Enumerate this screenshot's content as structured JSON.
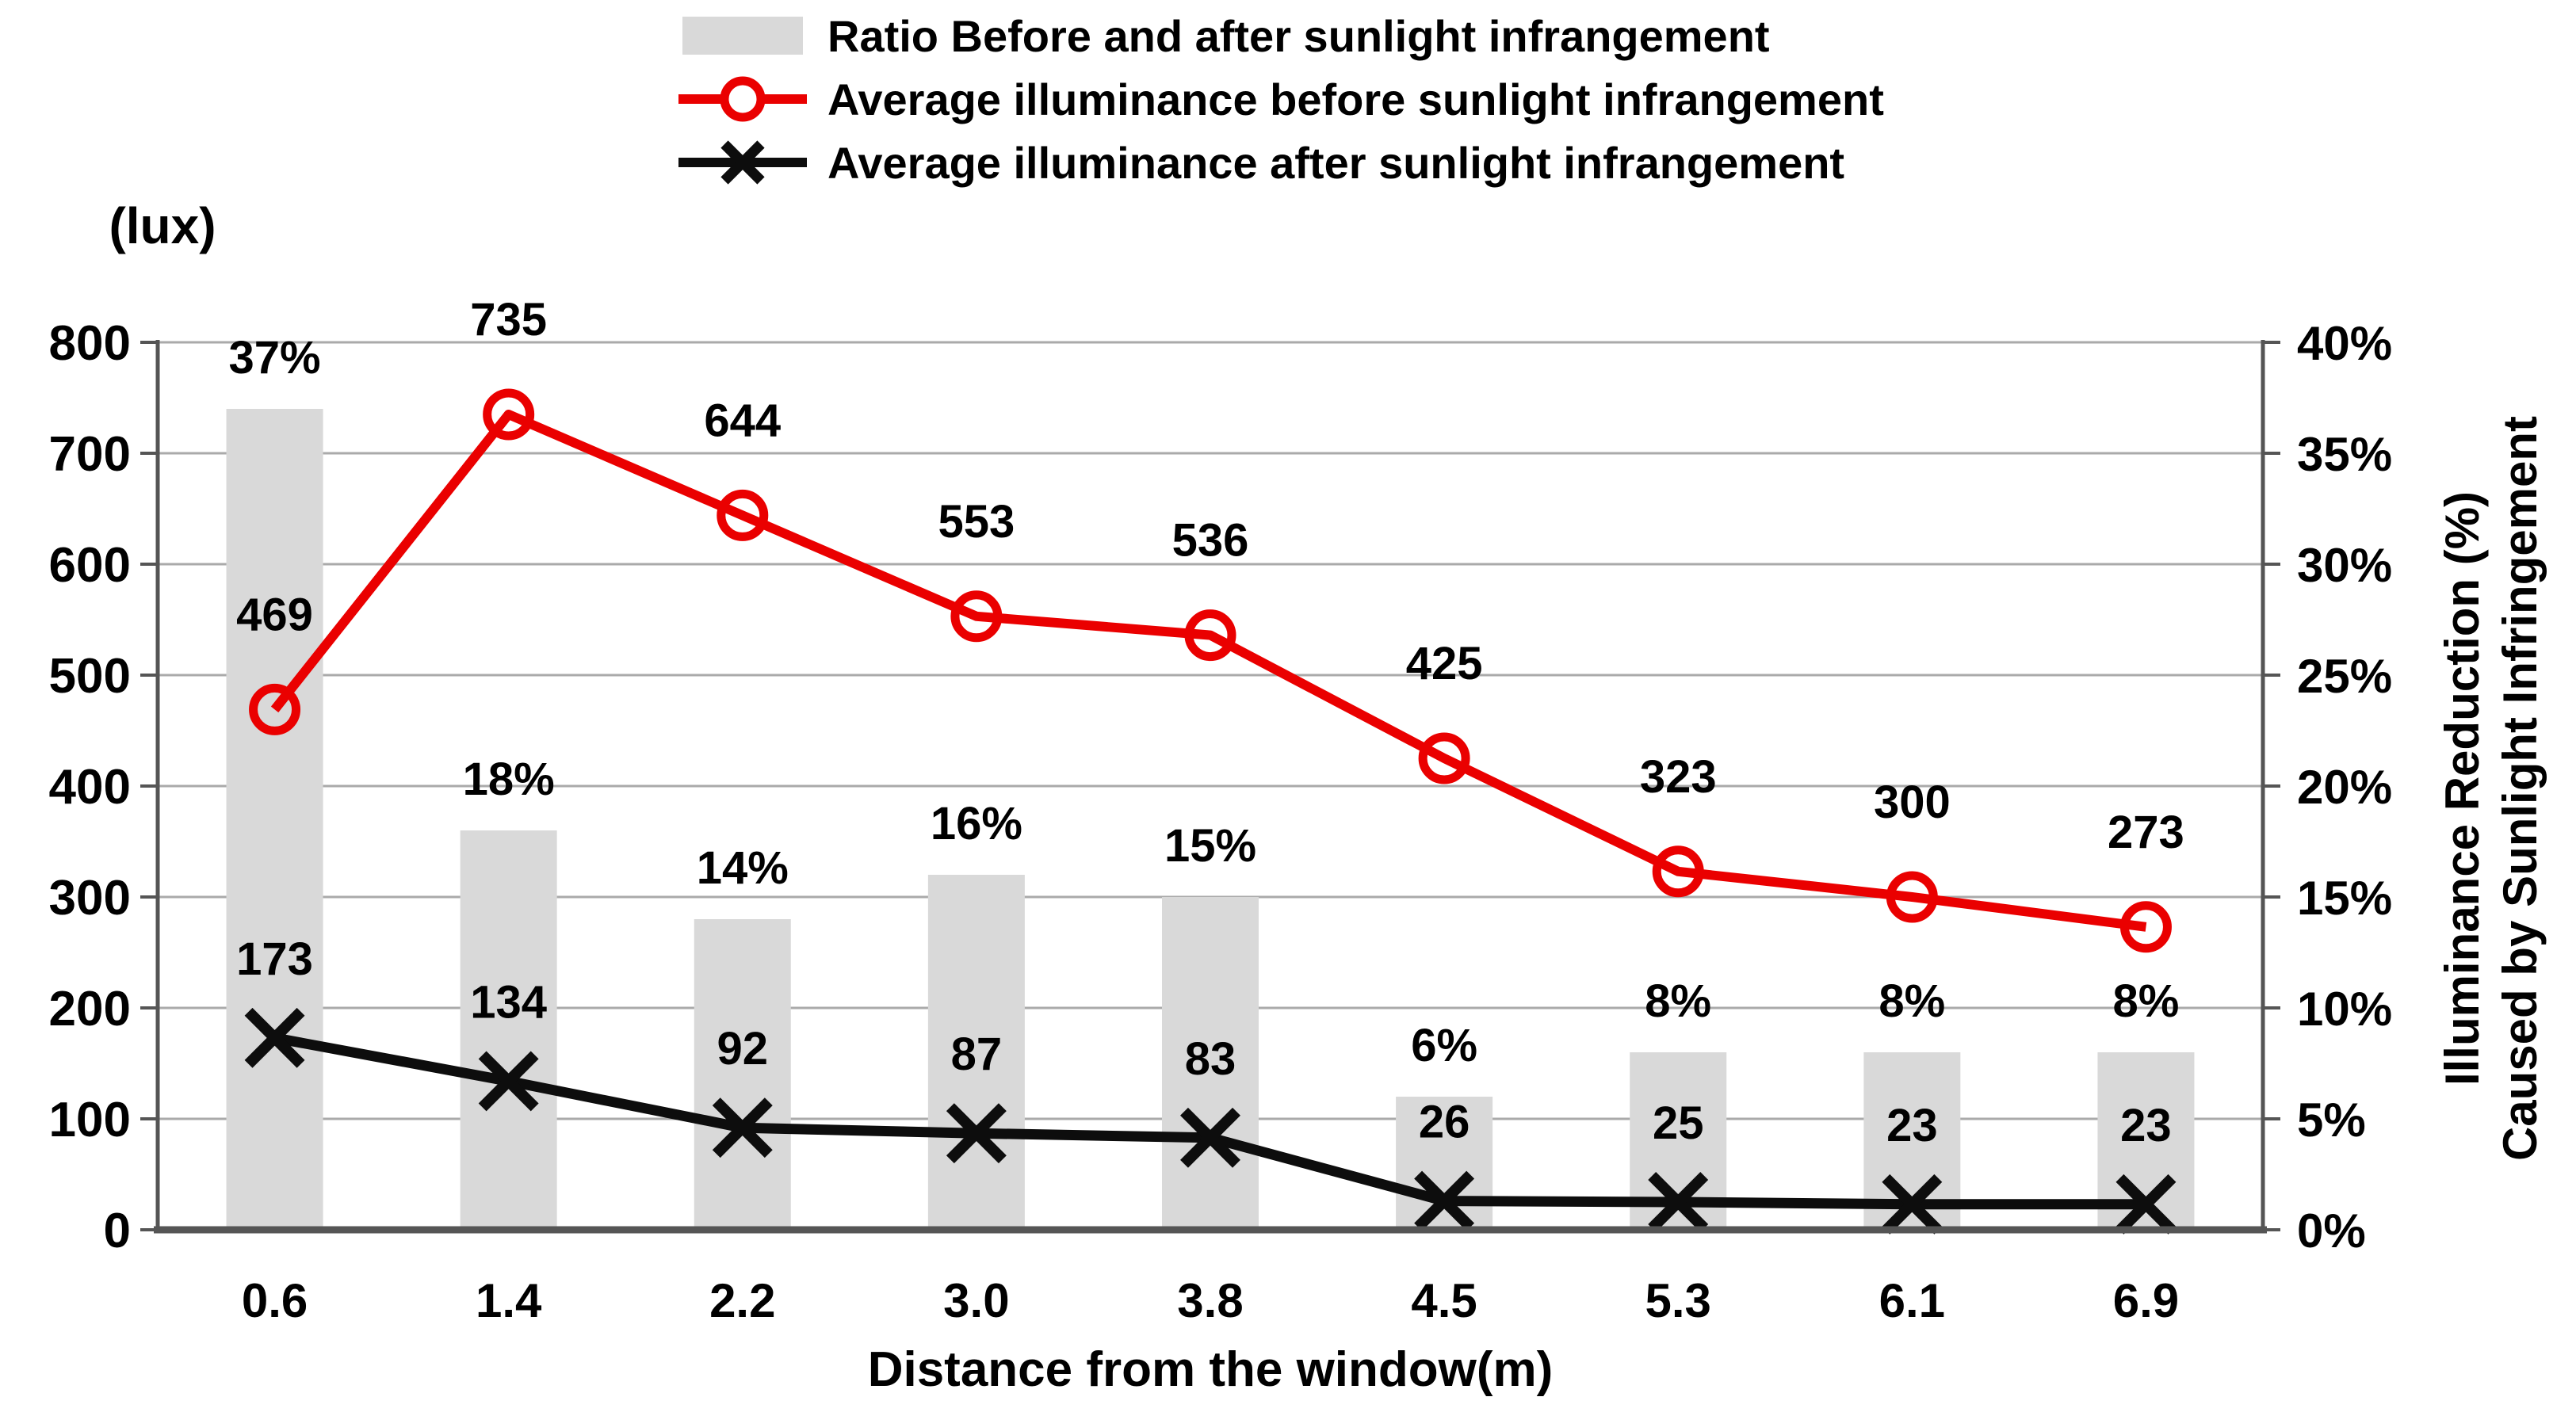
{
  "chart_data": {
    "type": "combo",
    "title": "",
    "categories": [
      "0.6",
      "1.4",
      "2.2",
      "3.0",
      "3.8",
      "4.5",
      "5.3",
      "6.1",
      "6.9"
    ],
    "series": [
      {
        "name": "Ratio Before and after sunlight infrangement",
        "type": "bar",
        "axis": "right",
        "color": "#d9d9d9",
        "values": [
          37,
          18,
          14,
          16,
          15,
          6,
          8,
          8,
          8
        ],
        "labels": [
          "37%",
          "18%",
          "14%",
          "16%",
          "15%",
          "6%",
          "8%",
          "8%",
          "8%"
        ]
      },
      {
        "name": "Average illuminance before sunlight infrangement",
        "type": "line",
        "axis": "left",
        "marker": "circle",
        "color": "#ea0000",
        "values": [
          469,
          735,
          644,
          553,
          536,
          425,
          323,
          300,
          273
        ],
        "labels": [
          "469",
          "735",
          "644",
          "553",
          "536",
          "425",
          "323",
          "300",
          "273"
        ]
      },
      {
        "name": "Average illuminance after sunlight infrangement",
        "type": "line",
        "axis": "left",
        "marker": "x",
        "color": "#0d0d0d",
        "values": [
          173,
          134,
          92,
          87,
          83,
          26,
          25,
          23,
          23
        ],
        "labels": [
          "173",
          "134",
          "92",
          "87",
          "83",
          "26",
          "25",
          "23",
          "23"
        ]
      }
    ],
    "left_axis": {
      "title": "(lux)",
      "min": 0,
      "max": 800,
      "step": 100,
      "ticks": [
        "0",
        "100",
        "200",
        "300",
        "400",
        "500",
        "600",
        "700",
        "800"
      ]
    },
    "right_axis": {
      "title_line1": "Illuminance Reduction (%)",
      "title_line2": "Caused by Sunlight Infringement",
      "min": 0,
      "max": 40,
      "step": 5,
      "ticks": [
        "0%",
        "5%",
        "10%",
        "15%",
        "20%",
        "25%",
        "30%",
        "35%",
        "40%"
      ]
    },
    "x_axis": {
      "title": "Distance from the window(m)"
    },
    "layout": {
      "grid": "horizontal-on",
      "legend_position": "top-center",
      "gridline_color": "#aaaaaa",
      "axis_color": "#555555",
      "background": "#ffffff"
    }
  }
}
